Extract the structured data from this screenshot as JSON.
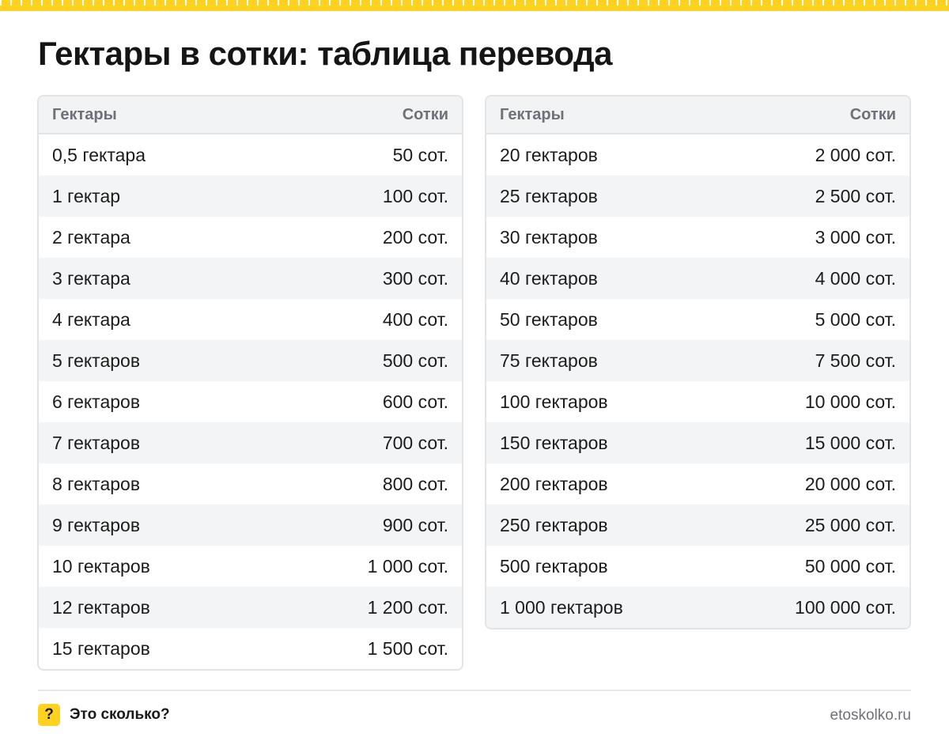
{
  "title": "Гектары в сотки: таблица перевода",
  "table_left": {
    "headers": [
      "Гектары",
      "Сотки"
    ],
    "rows": [
      [
        "0,5 гектара",
        "50 сот."
      ],
      [
        "1 гектар",
        "100 сот."
      ],
      [
        "2 гектара",
        "200 сот."
      ],
      [
        "3 гектара",
        "300 сот."
      ],
      [
        "4 гектара",
        "400 сот."
      ],
      [
        "5 гектаров",
        "500 сот."
      ],
      [
        "6 гектаров",
        "600 сот."
      ],
      [
        "7 гектаров",
        "700 сот."
      ],
      [
        "8 гектаров",
        "800 сот."
      ],
      [
        "9 гектаров",
        "900 сот."
      ],
      [
        "10 гектаров",
        "1 000 сот."
      ],
      [
        "12 гектаров",
        "1 200 сот."
      ],
      [
        "15 гектаров",
        "1 500 сот."
      ]
    ]
  },
  "table_right": {
    "headers": [
      "Гектары",
      "Сотки"
    ],
    "rows": [
      [
        "20 гектаров",
        "2 000 сот."
      ],
      [
        "25 гектаров",
        "2 500 сот."
      ],
      [
        "30 гектаров",
        "3 000 сот."
      ],
      [
        "40 гектаров",
        "4 000 сот."
      ],
      [
        "50 гектаров",
        "5 000 сот."
      ],
      [
        "75 гектаров",
        "7 500 сот."
      ],
      [
        "100 гектаров",
        "10 000 сот."
      ],
      [
        "150 гектаров",
        "15 000 сот."
      ],
      [
        "200 гектаров",
        "20 000 сот."
      ],
      [
        "250 гектаров",
        "25 000 сот."
      ],
      [
        "500 гектаров",
        "50 000 сот."
      ],
      [
        "1 000 гектаров",
        "100 000 сот."
      ]
    ]
  },
  "footer": {
    "logo_glyph": "?",
    "brand": "Это сколько?",
    "site": "etoskolko.ru"
  },
  "colors": {
    "accent": "#ffd21f",
    "header_bg": "#f2f3f4",
    "header_text": "#6d7178",
    "stripe": "#f3f4f5",
    "border": "#e3e4e6"
  },
  "icons": {
    "ruler": "ruler-decoration",
    "logo": "question-mark-logo"
  }
}
